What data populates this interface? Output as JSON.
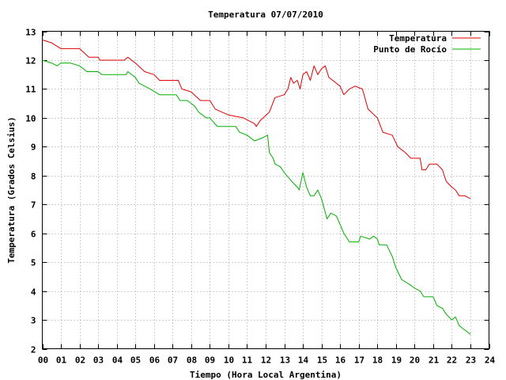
{
  "chart_data": {
    "type": "line",
    "title": "Temperatura 07/07/2010",
    "xlabel": "Tiempo (Hora Local Argentina)",
    "ylabel": "Temperatura (Grados Celsius)",
    "xlim": [
      0,
      24
    ],
    "ylim": [
      2,
      13
    ],
    "x_ticks": [
      0,
      1,
      2,
      3,
      4,
      5,
      6,
      7,
      8,
      9,
      10,
      11,
      12,
      13,
      14,
      15,
      16,
      17,
      18,
      19,
      20,
      21,
      22,
      23,
      24
    ],
    "x_tick_labels": [
      "00",
      "01",
      "02",
      "03",
      "04",
      "05",
      "06",
      "07",
      "08",
      "09",
      "10",
      "11",
      "12",
      "13",
      "14",
      "15",
      "16",
      "17",
      "18",
      "19",
      "20",
      "21",
      "22",
      "23",
      "24"
    ],
    "y_ticks": [
      2,
      3,
      4,
      5,
      6,
      7,
      8,
      9,
      10,
      11,
      12,
      13
    ],
    "grid": true,
    "legend_position": "top-right",
    "series": [
      {
        "name": "Temperatura",
        "color": "#e00000",
        "points": [
          [
            0,
            12.7
          ],
          [
            0.5,
            12.6
          ],
          [
            1,
            12.4
          ],
          [
            2,
            12.4
          ],
          [
            2.5,
            12.1
          ],
          [
            3,
            12.1
          ],
          [
            3.1,
            12.0
          ],
          [
            4.4,
            12.0
          ],
          [
            4.6,
            12.1
          ],
          [
            5.0,
            11.9
          ],
          [
            5.5,
            11.6
          ],
          [
            6.0,
            11.5
          ],
          [
            6.3,
            11.3
          ],
          [
            7.3,
            11.3
          ],
          [
            7.5,
            11.0
          ],
          [
            8.0,
            10.9
          ],
          [
            8.5,
            10.6
          ],
          [
            9.0,
            10.6
          ],
          [
            9.3,
            10.3
          ],
          [
            10.0,
            10.1
          ],
          [
            10.8,
            10.0
          ],
          [
            11.4,
            9.8
          ],
          [
            11.5,
            9.7
          ],
          [
            11.7,
            9.9
          ],
          [
            12.2,
            10.2
          ],
          [
            12.5,
            10.7
          ],
          [
            13.0,
            10.8
          ],
          [
            13.2,
            11.0
          ],
          [
            13.35,
            11.4
          ],
          [
            13.5,
            11.2
          ],
          [
            13.7,
            11.3
          ],
          [
            13.85,
            11.0
          ],
          [
            14.0,
            11.5
          ],
          [
            14.2,
            11.6
          ],
          [
            14.4,
            11.3
          ],
          [
            14.6,
            11.8
          ],
          [
            14.8,
            11.5
          ],
          [
            15.0,
            11.7
          ],
          [
            15.2,
            11.8
          ],
          [
            15.4,
            11.4
          ],
          [
            15.6,
            11.3
          ],
          [
            16.0,
            11.1
          ],
          [
            16.2,
            10.8
          ],
          [
            16.5,
            11.0
          ],
          [
            16.8,
            11.1
          ],
          [
            17.2,
            11.0
          ],
          [
            17.5,
            10.3
          ],
          [
            18.0,
            10.0
          ],
          [
            18.3,
            9.5
          ],
          [
            18.8,
            9.4
          ],
          [
            19.1,
            9.0
          ],
          [
            19.5,
            8.8
          ],
          [
            19.8,
            8.6
          ],
          [
            20.3,
            8.6
          ],
          [
            20.4,
            8.2
          ],
          [
            20.6,
            8.2
          ],
          [
            20.8,
            8.4
          ],
          [
            21.2,
            8.4
          ],
          [
            21.5,
            8.2
          ],
          [
            21.7,
            7.8
          ],
          [
            22.0,
            7.6
          ],
          [
            22.2,
            7.5
          ],
          [
            22.4,
            7.3
          ],
          [
            22.7,
            7.3
          ],
          [
            23.0,
            7.2
          ]
        ]
      },
      {
        "name": "Punto de Rocío",
        "color": "#00b000",
        "points": [
          [
            0,
            12.0
          ],
          [
            0.5,
            11.9
          ],
          [
            0.8,
            11.8
          ],
          [
            1.0,
            11.9
          ],
          [
            1.5,
            11.9
          ],
          [
            2.0,
            11.8
          ],
          [
            2.4,
            11.6
          ],
          [
            3.0,
            11.6
          ],
          [
            3.2,
            11.5
          ],
          [
            4.5,
            11.5
          ],
          [
            4.6,
            11.6
          ],
          [
            5.0,
            11.4
          ],
          [
            5.2,
            11.2
          ],
          [
            5.8,
            11.0
          ],
          [
            6.3,
            10.8
          ],
          [
            7.2,
            10.8
          ],
          [
            7.4,
            10.6
          ],
          [
            7.8,
            10.6
          ],
          [
            8.0,
            10.5
          ],
          [
            8.2,
            10.4
          ],
          [
            8.4,
            10.2
          ],
          [
            8.6,
            10.1
          ],
          [
            8.8,
            10.0
          ],
          [
            9.0,
            10.0
          ],
          [
            9.4,
            9.7
          ],
          [
            10.4,
            9.7
          ],
          [
            10.6,
            9.5
          ],
          [
            11.0,
            9.4
          ],
          [
            11.4,
            9.2
          ],
          [
            11.8,
            9.3
          ],
          [
            12.1,
            9.4
          ],
          [
            12.2,
            8.8
          ],
          [
            12.4,
            8.6
          ],
          [
            12.5,
            8.4
          ],
          [
            12.8,
            8.3
          ],
          [
            13.0,
            8.1
          ],
          [
            13.4,
            7.8
          ],
          [
            13.7,
            7.6
          ],
          [
            13.8,
            7.5
          ],
          [
            14.0,
            8.1
          ],
          [
            14.2,
            7.6
          ],
          [
            14.4,
            7.3
          ],
          [
            14.6,
            7.3
          ],
          [
            14.8,
            7.5
          ],
          [
            15.0,
            7.2
          ],
          [
            15.3,
            6.5
          ],
          [
            15.5,
            6.7
          ],
          [
            15.8,
            6.6
          ],
          [
            16.0,
            6.3
          ],
          [
            16.2,
            6.0
          ],
          [
            16.5,
            5.7
          ],
          [
            17.0,
            5.7
          ],
          [
            17.1,
            5.9
          ],
          [
            17.6,
            5.8
          ],
          [
            17.8,
            5.9
          ],
          [
            18.0,
            5.8
          ],
          [
            18.1,
            5.6
          ],
          [
            18.5,
            5.6
          ],
          [
            18.8,
            5.2
          ],
          [
            19.0,
            4.8
          ],
          [
            19.3,
            4.4
          ],
          [
            19.8,
            4.2
          ],
          [
            20.0,
            4.1
          ],
          [
            20.3,
            4.0
          ],
          [
            20.5,
            3.8
          ],
          [
            21.0,
            3.8
          ],
          [
            21.2,
            3.5
          ],
          [
            21.5,
            3.4
          ],
          [
            21.7,
            3.2
          ],
          [
            22.0,
            3.0
          ],
          [
            22.2,
            3.1
          ],
          [
            22.4,
            2.8
          ],
          [
            22.6,
            2.7
          ],
          [
            22.8,
            2.6
          ],
          [
            23.0,
            2.5
          ]
        ]
      }
    ]
  }
}
